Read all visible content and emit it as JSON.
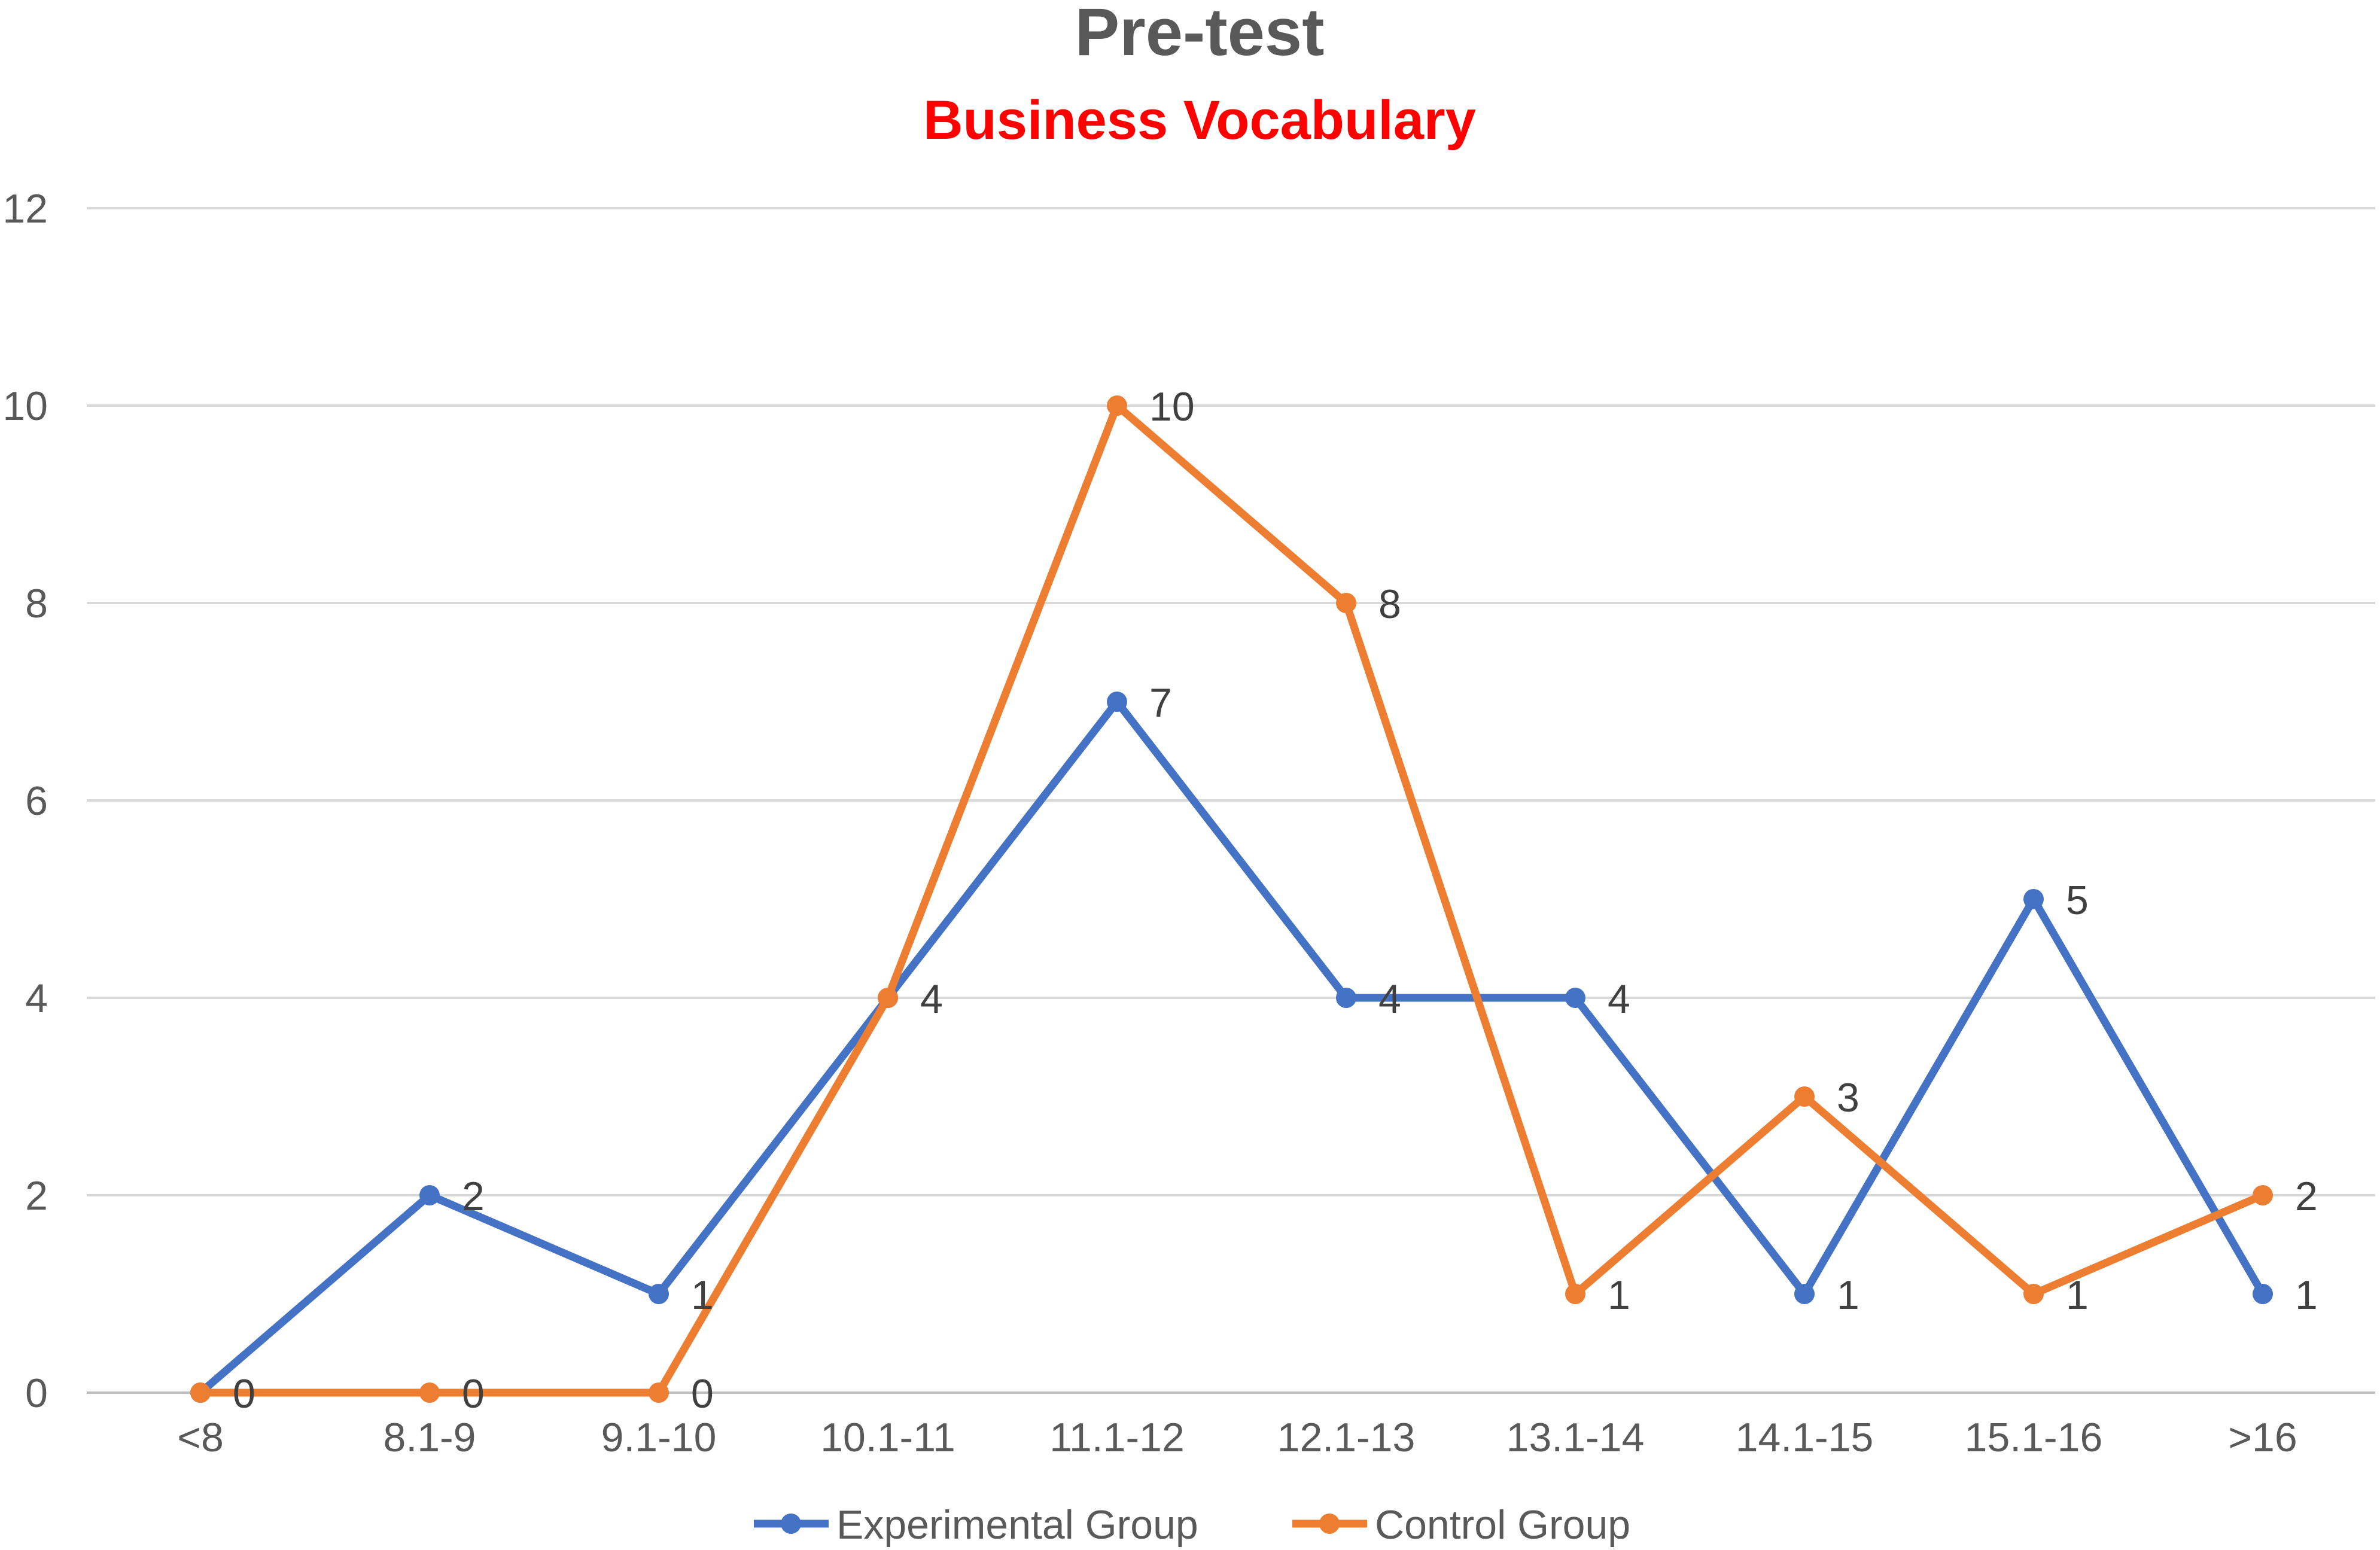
{
  "chart_data": {
    "type": "line",
    "title": "Pre-test",
    "subtitle": "Business Vocabulary",
    "xlabel": "",
    "ylabel": "",
    "categories": [
      "<8",
      "8.1-9",
      "9.1-10",
      "10.1-11",
      "11.1-12",
      "12.1-13",
      "13.1-14",
      "14.1-15",
      "15.1-16",
      ">16"
    ],
    "ylim": [
      0,
      12
    ],
    "yticks": [
      0,
      2,
      4,
      6,
      8,
      10,
      12
    ],
    "grid": true,
    "legend_position": "bottom",
    "series": [
      {
        "name": "Experimental Group",
        "color": "#4472C4",
        "values": [
          0,
          2,
          1,
          4,
          7,
          4,
          4,
          1,
          5,
          1
        ]
      },
      {
        "name": "Control Group",
        "color": "#ED7D31",
        "values": [
          0,
          0,
          0,
          4,
          10,
          8,
          1,
          3,
          1,
          2
        ]
      }
    ],
    "colors": {
      "title": "#595959",
      "subtitle": "#FF0000",
      "grid": "#D9D9D9",
      "axis": "#BFBFBF"
    }
  }
}
